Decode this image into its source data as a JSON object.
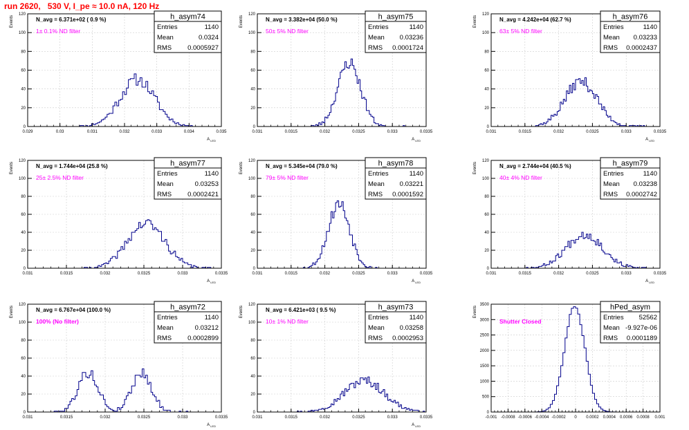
{
  "page_title": "run 2620,   530 V, I_pe ≈ 10.0 nA, 120 Hz",
  "colors": {
    "histogram": "#00008b",
    "annotation": "#ff00ff",
    "title": "#ff0000",
    "frame": "#000000",
    "grid": "#cccccc"
  },
  "chart_data": [
    {
      "type": "bar",
      "histogram_name": "h_asym74",
      "stats": {
        "entries": 1140,
        "mean": "0.0324",
        "rms": "0.0005927"
      },
      "navg_label": "N_avg = 6.371e+02 ( 0.9 %)",
      "filter_label": "1± 0.1% ND filter",
      "ylabel": "Events",
      "xlabel": "A_LED",
      "xlim": [
        0.029,
        0.035
      ],
      "ylim": [
        0,
        120
      ],
      "xticks": [
        "0.029",
        "0.03",
        "0.031",
        "0.032",
        "0.033",
        "0.034",
        "0.035"
      ],
      "yticks": [
        "0",
        "20",
        "40",
        "60",
        "80",
        "100",
        "120"
      ],
      "grid": true,
      "shape": {
        "center": 0.0324,
        "sigma": 0.00054,
        "peak": 50,
        "x_from": 0.0304,
        "x_to": 0.0345,
        "bins": 100,
        "seed": 11
      }
    },
    {
      "type": "bar",
      "histogram_name": "h_asym75",
      "stats": {
        "entries": 1140,
        "mean": "0.03236",
        "rms": "0.0001724"
      },
      "navg_label": "N_avg = 3.382e+04 (50.0 %)",
      "filter_label": "50± 5% ND filter",
      "ylabel": "Events",
      "xlabel": "A_LED",
      "xlim": [
        0.031,
        0.0335
      ],
      "ylim": [
        0,
        120
      ],
      "xticks": [
        "0.031",
        "0.0315",
        "0.032",
        "0.0325",
        "0.033",
        "0.0335"
      ],
      "yticks": [
        "0",
        "20",
        "40",
        "60",
        "80",
        "100",
        "120"
      ],
      "grid": true,
      "shape": {
        "center": 0.03236,
        "sigma": 0.00017,
        "peak": 68,
        "x_from": 0.0317,
        "x_to": 0.0332,
        "bins": 110,
        "seed": 23
      }
    },
    {
      "type": "bar",
      "histogram_name": "h_asym76",
      "stats": {
        "entries": 1140,
        "mean": "0.03233",
        "rms": "0.0002437"
      },
      "navg_label": "N_avg = 4.242e+04 (62.7 %)",
      "filter_label": "63± 5% ND filter",
      "ylabel": "Events",
      "xlabel": "A_LED",
      "xlim": [
        0.031,
        0.0335
      ],
      "ylim": [
        0,
        120
      ],
      "xticks": [
        "0.031",
        "0.0315",
        "0.032",
        "0.0325",
        "0.033",
        "0.0335"
      ],
      "yticks": [
        "0",
        "20",
        "40",
        "60",
        "80",
        "100",
        "120"
      ],
      "grid": true,
      "shape": {
        "center": 0.03233,
        "sigma": 0.00024,
        "peak": 48,
        "x_from": 0.0315,
        "x_to": 0.0333,
        "bins": 110,
        "seed": 37
      }
    },
    {
      "type": "bar",
      "histogram_name": "h_asym77",
      "stats": {
        "entries": 1140,
        "mean": "0.03253",
        "rms": "0.0002421"
      },
      "navg_label": "N_avg = 1.744e+04 (25.8 %)",
      "filter_label": "25± 2.5% ND filter",
      "ylabel": "Events",
      "xlabel": "A_LED",
      "xlim": [
        0.031,
        0.0335
      ],
      "ylim": [
        0,
        120
      ],
      "xticks": [
        "0.031",
        "0.0315",
        "0.032",
        "0.0325",
        "0.033",
        "0.0335"
      ],
      "yticks": [
        "0",
        "20",
        "40",
        "60",
        "80",
        "100",
        "120"
      ],
      "grid": true,
      "shape": {
        "center": 0.03253,
        "sigma": 0.00024,
        "peak": 50,
        "x_from": 0.0317,
        "x_to": 0.0334,
        "bins": 110,
        "seed": 41
      }
    },
    {
      "type": "bar",
      "histogram_name": "h_asym78",
      "stats": {
        "entries": 1140,
        "mean": "0.03221",
        "rms": "0.0001592"
      },
      "navg_label": "N_avg = 5.345e+04 (79.0 %)",
      "filter_label": "79± 5% ND filter",
      "ylabel": "Events",
      "xlabel": "A_LED",
      "xlim": [
        0.031,
        0.0335
      ],
      "ylim": [
        0,
        120
      ],
      "xticks": [
        "0.031",
        "0.0315",
        "0.032",
        "0.0325",
        "0.033",
        "0.0335"
      ],
      "yticks": [
        "0",
        "20",
        "40",
        "60",
        "80",
        "100",
        "120"
      ],
      "grid": true,
      "shape": {
        "center": 0.03221,
        "sigma": 0.00016,
        "peak": 72,
        "x_from": 0.0316,
        "x_to": 0.0328,
        "bins": 110,
        "seed": 53
      }
    },
    {
      "type": "bar",
      "histogram_name": "h_asym79",
      "stats": {
        "entries": 1140,
        "mean": "0.03238",
        "rms": "0.0002742"
      },
      "navg_label": "N_avg = 2.744e+04 (40.5 %)",
      "filter_label": "40± 4% ND filter",
      "ylabel": "Events",
      "xlabel": "A_LED",
      "xlim": [
        0.031,
        0.0335
      ],
      "ylim": [
        0,
        120
      ],
      "xticks": [
        "0.031",
        "0.0315",
        "0.032",
        "0.0325",
        "0.033",
        "0.0335"
      ],
      "yticks": [
        "0",
        "20",
        "40",
        "60",
        "80",
        "100",
        "120"
      ],
      "grid": true,
      "shape": {
        "center": 0.03238,
        "sigma": 0.00027,
        "peak": 38,
        "x_from": 0.0314,
        "x_to": 0.0333,
        "bins": 110,
        "seed": 67
      }
    },
    {
      "type": "bar",
      "histogram_name": "h_asym72",
      "stats": {
        "entries": 1140,
        "mean": "0.03212",
        "rms": "0.0002899"
      },
      "navg_label": "N_avg = 6.767e+04 (100.0 %)",
      "filter_label": "100% (No filter)",
      "ylabel": "Events",
      "xlabel": "A_LED",
      "xlim": [
        0.031,
        0.0335
      ],
      "ylim": [
        0,
        120
      ],
      "xticks": [
        "0.031",
        "0.0315",
        "0.032",
        "0.0325",
        "0.033",
        "0.0335"
      ],
      "yticks": [
        "0",
        "20",
        "40",
        "60",
        "80",
        "100",
        "120"
      ],
      "grid": true,
      "shape": {
        "center": 0.03212,
        "sigma": 0.00029,
        "peak": 44,
        "x_from": 0.0313,
        "x_to": 0.0331,
        "bins": 110,
        "seed": 79,
        "bimodal": true
      }
    },
    {
      "type": "bar",
      "histogram_name": "h_asym73",
      "stats": {
        "entries": 1140,
        "mean": "0.03258",
        "rms": "0.0002953"
      },
      "navg_label": "N_avg = 6.421e+03 ( 9.5 %)",
      "filter_label": "10± 1% ND filter",
      "ylabel": "Events",
      "xlabel": "A_LED",
      "xlim": [
        0.031,
        0.0335
      ],
      "ylim": [
        0,
        120
      ],
      "xticks": [
        "0.031",
        "0.0315",
        "0.032",
        "0.0325",
        "0.033",
        "0.0335"
      ],
      "yticks": [
        "0",
        "20",
        "40",
        "60",
        "80",
        "100",
        "120"
      ],
      "grid": true,
      "shape": {
        "center": 0.03258,
        "sigma": 0.0003,
        "peak": 35,
        "x_from": 0.0314,
        "x_to": 0.0335,
        "bins": 110,
        "seed": 97
      }
    },
    {
      "type": "bar",
      "histogram_name": "hPed_asym",
      "stats": {
        "entries": 52562,
        "mean": "-9.927e-06",
        "rms": "0.0001189"
      },
      "navg_label": "",
      "filter_label": "Shutter Closed",
      "ylabel": "Events",
      "xlabel": "",
      "xlim": [
        -0.001,
        0.001
      ],
      "ylim": [
        0,
        3500
      ],
      "xticks": [
        "-0.001",
        "-0.0008",
        "-0.0006",
        "-0.0004",
        "-0.0002",
        "0",
        "0.0002",
        "0.0004",
        "0.0006",
        "0.0008",
        "0.001"
      ],
      "yticks": [
        "0",
        "500",
        "1000",
        "1500",
        "2000",
        "2500",
        "3000",
        "3500"
      ],
      "grid": true,
      "shape": {
        "center": -1e-05,
        "sigma": 0.00012,
        "peak": 3450,
        "x_from": -0.0005,
        "x_to": 0.0005,
        "bins": 80,
        "seed": 101
      }
    }
  ]
}
